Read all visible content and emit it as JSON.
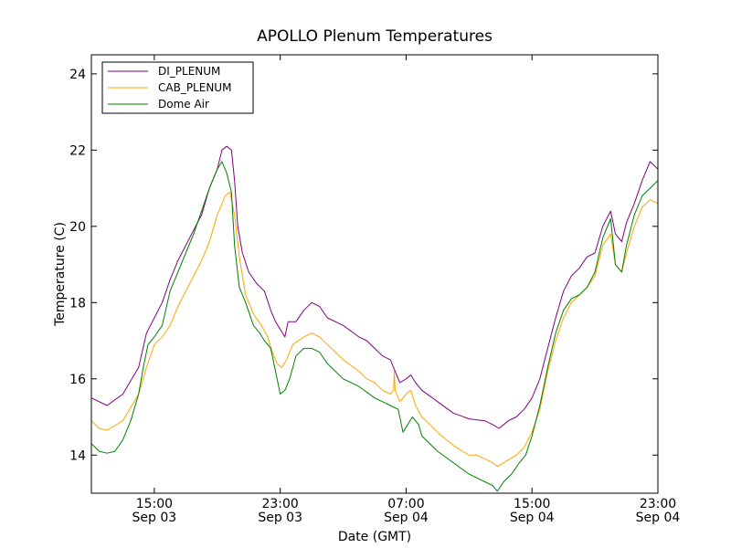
{
  "chart_data": {
    "type": "line",
    "title": "APOLLO Plenum Temperatures",
    "xlabel": "Date (GMT)",
    "ylabel": "Temperature (C)",
    "x_unit": "hours since Sep 03 11:00 GMT",
    "xlim": [
      0,
      36
    ],
    "ylim": [
      13,
      24.5
    ],
    "yticks": [
      14,
      16,
      18,
      20,
      22,
      24
    ],
    "xticks": [
      {
        "x": 4,
        "time": "15:00",
        "date": "Sep 03"
      },
      {
        "x": 12,
        "time": "23:00",
        "date": "Sep 03"
      },
      {
        "x": 20,
        "time": "07:00",
        "date": "Sep 04"
      },
      {
        "x": 28,
        "time": "15:00",
        "date": "Sep 04"
      },
      {
        "x": 36,
        "time": "23:00",
        "date": "Sep 04"
      }
    ],
    "legend_position": "top-left",
    "series": [
      {
        "name": "DI_PLENUM",
        "color": "#800080",
        "points": [
          [
            0,
            15.5
          ],
          [
            1,
            15.3
          ],
          [
            2,
            15.6
          ],
          [
            3,
            16.3
          ],
          [
            3.5,
            17.2
          ],
          [
            4,
            17.6
          ],
          [
            4.5,
            18.0
          ],
          [
            5,
            18.6
          ],
          [
            5.5,
            19.1
          ],
          [
            6,
            19.5
          ],
          [
            6.5,
            19.9
          ],
          [
            7,
            20.3
          ],
          [
            7.5,
            21.0
          ],
          [
            8,
            21.5
          ],
          [
            8.3,
            22.0
          ],
          [
            8.6,
            22.1
          ],
          [
            8.9,
            22.0
          ],
          [
            9.1,
            21.2
          ],
          [
            9.3,
            20.0
          ],
          [
            9.6,
            19.3
          ],
          [
            10,
            18.8
          ],
          [
            10.5,
            18.5
          ],
          [
            11,
            18.3
          ],
          [
            11.4,
            17.8
          ],
          [
            11.7,
            17.5
          ],
          [
            12,
            17.3
          ],
          [
            12.3,
            17.1
          ],
          [
            12.5,
            17.5
          ],
          [
            13,
            17.5
          ],
          [
            13.5,
            17.8
          ],
          [
            14,
            18.0
          ],
          [
            14.5,
            17.9
          ],
          [
            15,
            17.6
          ],
          [
            16,
            17.4
          ],
          [
            17,
            17.1
          ],
          [
            17.5,
            17.0
          ],
          [
            18,
            16.8
          ],
          [
            18.5,
            16.6
          ],
          [
            19,
            16.5
          ],
          [
            19.3,
            16.2
          ],
          [
            19.6,
            15.9
          ],
          [
            20,
            16.0
          ],
          [
            20.3,
            16.1
          ],
          [
            20.6,
            15.9
          ],
          [
            21,
            15.7
          ],
          [
            22,
            15.4
          ],
          [
            23,
            15.1
          ],
          [
            24,
            14.95
          ],
          [
            25,
            14.9
          ],
          [
            25.5,
            14.8
          ],
          [
            25.9,
            14.7
          ],
          [
            26.5,
            14.9
          ],
          [
            27,
            15.0
          ],
          [
            27.5,
            15.2
          ],
          [
            28,
            15.5
          ],
          [
            28.5,
            16.0
          ],
          [
            29,
            16.8
          ],
          [
            29.5,
            17.6
          ],
          [
            30,
            18.3
          ],
          [
            30.5,
            18.7
          ],
          [
            31,
            18.9
          ],
          [
            31.5,
            19.2
          ],
          [
            32,
            19.3
          ],
          [
            32.5,
            20.0
          ],
          [
            33,
            20.4
          ],
          [
            33.3,
            19.8
          ],
          [
            33.7,
            19.6
          ],
          [
            34,
            20.1
          ],
          [
            34.5,
            20.6
          ],
          [
            35,
            21.2
          ],
          [
            35.5,
            21.7
          ],
          [
            36,
            21.5
          ]
        ]
      },
      {
        "name": "CAB_PLENUM",
        "color": "#FFA500",
        "points": [
          [
            0,
            14.9
          ],
          [
            0.5,
            14.7
          ],
          [
            1,
            14.65
          ],
          [
            2,
            14.9
          ],
          [
            3,
            15.6
          ],
          [
            3.5,
            16.3
          ],
          [
            4,
            16.9
          ],
          [
            4.5,
            17.1
          ],
          [
            5,
            17.4
          ],
          [
            5.5,
            17.9
          ],
          [
            6,
            18.3
          ],
          [
            6.5,
            18.7
          ],
          [
            7,
            19.1
          ],
          [
            7.5,
            19.6
          ],
          [
            8,
            20.3
          ],
          [
            8.5,
            20.8
          ],
          [
            8.8,
            20.9
          ],
          [
            9.1,
            20.3
          ],
          [
            9.4,
            19.2
          ],
          [
            9.8,
            18.2
          ],
          [
            10.3,
            17.7
          ],
          [
            10.8,
            17.4
          ],
          [
            11.2,
            17.1
          ],
          [
            11.5,
            16.7
          ],
          [
            11.8,
            16.4
          ],
          [
            12.1,
            16.3
          ],
          [
            12.4,
            16.5
          ],
          [
            12.8,
            16.9
          ],
          [
            13.5,
            17.1
          ],
          [
            14,
            17.2
          ],
          [
            14.5,
            17.1
          ],
          [
            15,
            16.9
          ],
          [
            16,
            16.5
          ],
          [
            17,
            16.2
          ],
          [
            17.5,
            16.0
          ],
          [
            18,
            15.9
          ],
          [
            18.5,
            15.7
          ],
          [
            19,
            15.6
          ],
          [
            19.2,
            15.7
          ],
          [
            19.25,
            16.2
          ],
          [
            19.3,
            15.7
          ],
          [
            19.6,
            15.4
          ],
          [
            20,
            15.6
          ],
          [
            20.3,
            15.7
          ],
          [
            20.6,
            15.3
          ],
          [
            21,
            15.0
          ],
          [
            22,
            14.6
          ],
          [
            23,
            14.25
          ],
          [
            24,
            14.0
          ],
          [
            24.5,
            14.0
          ],
          [
            25,
            13.9
          ],
          [
            25.5,
            13.8
          ],
          [
            25.8,
            13.7
          ],
          [
            26.2,
            13.8
          ],
          [
            27,
            14.0
          ],
          [
            27.5,
            14.2
          ],
          [
            28,
            14.6
          ],
          [
            28.5,
            15.2
          ],
          [
            29,
            16.2
          ],
          [
            29.5,
            17.0
          ],
          [
            30,
            17.6
          ],
          [
            30.5,
            18.0
          ],
          [
            31,
            18.2
          ],
          [
            31.5,
            18.4
          ],
          [
            32,
            18.7
          ],
          [
            32.5,
            19.5
          ],
          [
            33,
            19.8
          ],
          [
            33.3,
            19.0
          ],
          [
            33.7,
            18.8
          ],
          [
            34,
            19.3
          ],
          [
            34.5,
            20.0
          ],
          [
            35,
            20.5
          ],
          [
            35.5,
            20.7
          ],
          [
            36,
            20.6
          ]
        ]
      },
      {
        "name": "Dome Air",
        "color": "#008000",
        "points": [
          [
            0,
            14.3
          ],
          [
            0.5,
            14.1
          ],
          [
            1,
            14.05
          ],
          [
            1.5,
            14.1
          ],
          [
            2,
            14.4
          ],
          [
            2.5,
            14.9
          ],
          [
            3,
            15.6
          ],
          [
            3.3,
            16.3
          ],
          [
            3.6,
            16.9
          ],
          [
            4,
            17.1
          ],
          [
            4.5,
            17.4
          ],
          [
            5,
            18.3
          ],
          [
            5.5,
            18.8
          ],
          [
            6,
            19.3
          ],
          [
            6.5,
            19.8
          ],
          [
            7,
            20.4
          ],
          [
            7.5,
            21.0
          ],
          [
            8,
            21.5
          ],
          [
            8.3,
            21.7
          ],
          [
            8.6,
            21.4
          ],
          [
            8.9,
            20.9
          ],
          [
            9.1,
            19.5
          ],
          [
            9.4,
            18.4
          ],
          [
            9.8,
            18.0
          ],
          [
            10.3,
            17.4
          ],
          [
            10.7,
            17.2
          ],
          [
            11,
            17.0
          ],
          [
            11.4,
            16.8
          ],
          [
            11.7,
            16.2
          ],
          [
            12,
            15.6
          ],
          [
            12.3,
            15.7
          ],
          [
            12.6,
            16.0
          ],
          [
            13,
            16.6
          ],
          [
            13.5,
            16.8
          ],
          [
            14,
            16.8
          ],
          [
            14.5,
            16.7
          ],
          [
            15,
            16.4
          ],
          [
            16,
            16.0
          ],
          [
            17,
            15.8
          ],
          [
            18,
            15.5
          ],
          [
            18.5,
            15.4
          ],
          [
            19,
            15.3
          ],
          [
            19.5,
            15.2
          ],
          [
            19.8,
            14.6
          ],
          [
            20.1,
            14.8
          ],
          [
            20.4,
            15.0
          ],
          [
            20.8,
            14.8
          ],
          [
            21,
            14.5
          ],
          [
            22,
            14.1
          ],
          [
            23,
            13.8
          ],
          [
            24,
            13.5
          ],
          [
            24.5,
            13.4
          ],
          [
            25,
            13.3
          ],
          [
            25.5,
            13.2
          ],
          [
            25.8,
            13.05
          ],
          [
            26.2,
            13.3
          ],
          [
            26.7,
            13.5
          ],
          [
            27.2,
            13.8
          ],
          [
            27.6,
            14.0
          ],
          [
            28,
            14.5
          ],
          [
            28.5,
            15.3
          ],
          [
            29,
            16.3
          ],
          [
            29.5,
            17.2
          ],
          [
            30,
            17.8
          ],
          [
            30.5,
            18.1
          ],
          [
            31,
            18.2
          ],
          [
            31.5,
            18.4
          ],
          [
            32,
            18.8
          ],
          [
            32.5,
            19.7
          ],
          [
            33,
            20.2
          ],
          [
            33.3,
            19.0
          ],
          [
            33.7,
            18.8
          ],
          [
            34,
            19.5
          ],
          [
            34.5,
            20.3
          ],
          [
            35,
            20.8
          ],
          [
            35.5,
            21.0
          ],
          [
            36,
            21.2
          ]
        ]
      }
    ]
  }
}
